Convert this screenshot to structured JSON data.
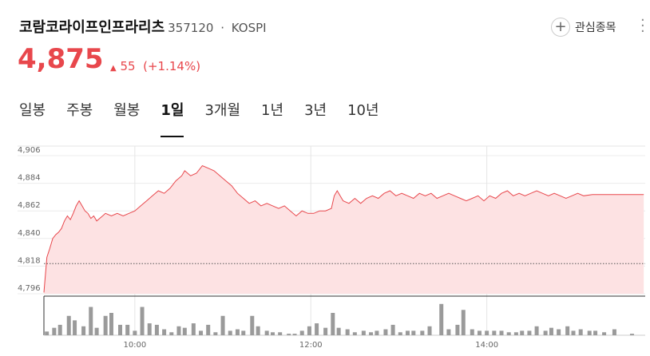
{
  "header": {
    "title": "코람코라이프인프라리츠",
    "code": "357120",
    "market": "KOSPI",
    "price": "4,875",
    "change": "55",
    "change_pct": "(+1.14%)",
    "watch_button": "관심종목"
  },
  "tabs": {
    "items": [
      "일봉",
      "주봉",
      "월봉",
      "1일",
      "3개월",
      "1년",
      "3년",
      "10년"
    ],
    "active": 3
  },
  "chart_data": {
    "type": "line",
    "color": "#e8474c",
    "fill": "#fde2e3",
    "grid": true,
    "xlim": [
      538,
      948
    ],
    "xticks": [
      {
        "value": 600,
        "label": "10:00"
      },
      {
        "value": 720,
        "label": "12:00"
      },
      {
        "value": 840,
        "label": "14:00"
      }
    ],
    "ylim": [
      4796,
      4906
    ],
    "yticks": [
      {
        "value": 4796,
        "label": "4,796"
      },
      {
        "value": 4818,
        "label": "4,818"
      },
      {
        "value": 4840,
        "label": "4,840"
      },
      {
        "value": 4862,
        "label": "4,862"
      },
      {
        "value": 4884,
        "label": "4,884"
      },
      {
        "value": 4906,
        "label": "4,906"
      }
    ],
    "reference": 4820,
    "x": [
      538,
      540,
      542,
      544,
      546,
      548,
      550,
      552,
      554,
      556,
      558,
      560,
      562,
      564,
      566,
      568,
      570,
      572,
      574,
      576,
      578,
      580,
      584,
      588,
      592,
      596,
      600,
      604,
      608,
      612,
      616,
      620,
      624,
      628,
      632,
      634,
      638,
      642,
      646,
      650,
      654,
      658,
      662,
      666,
      670,
      674,
      678,
      682,
      686,
      690,
      694,
      698,
      702,
      706,
      710,
      714,
      718,
      722,
      726,
      730,
      734,
      736,
      738,
      742,
      746,
      750,
      754,
      758,
      762,
      766,
      770,
      774,
      778,
      782,
      786,
      790,
      794,
      798,
      802,
      806,
      810,
      814,
      818,
      822,
      826,
      830,
      834,
      838,
      842,
      846,
      850,
      854,
      858,
      862,
      866,
      870,
      874,
      878,
      882,
      886,
      890,
      894,
      898,
      902,
      906,
      912,
      925,
      947
    ],
    "values": [
      4797,
      4825,
      4832,
      4840,
      4843,
      4845,
      4848,
      4854,
      4858,
      4855,
      4860,
      4866,
      4870,
      4866,
      4862,
      4860,
      4856,
      4858,
      4854,
      4856,
      4858,
      4860,
      4858,
      4860,
      4858,
      4860,
      4862,
      4866,
      4870,
      4874,
      4878,
      4876,
      4880,
      4886,
      4890,
      4894,
      4890,
      4892,
      4898,
      4896,
      4894,
      4890,
      4886,
      4882,
      4876,
      4872,
      4868,
      4870,
      4866,
      4868,
      4866,
      4864,
      4866,
      4862,
      4858,
      4862,
      4860,
      4860,
      4862,
      4862,
      4864,
      4874,
      4878,
      4870,
      4868,
      4872,
      4868,
      4872,
      4874,
      4872,
      4876,
      4878,
      4874,
      4876,
      4874,
      4872,
      4876,
      4874,
      4876,
      4872,
      4874,
      4876,
      4874,
      4872,
      4870,
      4872,
      4874,
      4870,
      4874,
      4872,
      4876,
      4878,
      4874,
      4876,
      4874,
      4876,
      4878,
      4876,
      4874,
      4876,
      4874,
      4872,
      4874,
      4876,
      4874,
      4875,
      4875,
      4875
    ],
    "volume": {
      "color": "#9a9a9a",
      "ylim": [
        0,
        45
      ],
      "x": [
        540,
        545,
        549,
        555,
        559,
        565,
        570,
        574,
        580,
        584,
        590,
        595,
        600,
        605,
        610,
        615,
        620,
        625,
        630,
        634,
        640,
        645,
        650,
        655,
        660,
        665,
        670,
        674,
        680,
        684,
        690,
        694,
        699,
        705,
        709,
        714,
        719,
        724,
        730,
        735,
        739,
        745,
        750,
        756,
        761,
        765,
        771,
        776,
        781,
        786,
        790,
        796,
        801,
        809,
        814,
        820,
        824,
        830,
        835,
        840,
        845,
        850,
        855,
        860,
        864,
        869,
        874,
        880,
        884,
        889,
        895,
        899,
        904,
        910,
        914,
        920,
        927,
        939
      ],
      "values": [
        5,
        10,
        14,
        26,
        20,
        12,
        38,
        10,
        26,
        30,
        14,
        14,
        6,
        38,
        16,
        14,
        8,
        4,
        12,
        10,
        16,
        6,
        14,
        4,
        26,
        6,
        8,
        6,
        26,
        12,
        6,
        4,
        4,
        2,
        2,
        6,
        12,
        16,
        10,
        30,
        10,
        8,
        4,
        6,
        4,
        6,
        8,
        14,
        4,
        6,
        6,
        6,
        12,
        42,
        8,
        14,
        34,
        8,
        6,
        6,
        6,
        6,
        4,
        4,
        6,
        6,
        12,
        6,
        10,
        8,
        12,
        6,
        8,
        6,
        6,
        4,
        8,
        2
      ]
    }
  }
}
